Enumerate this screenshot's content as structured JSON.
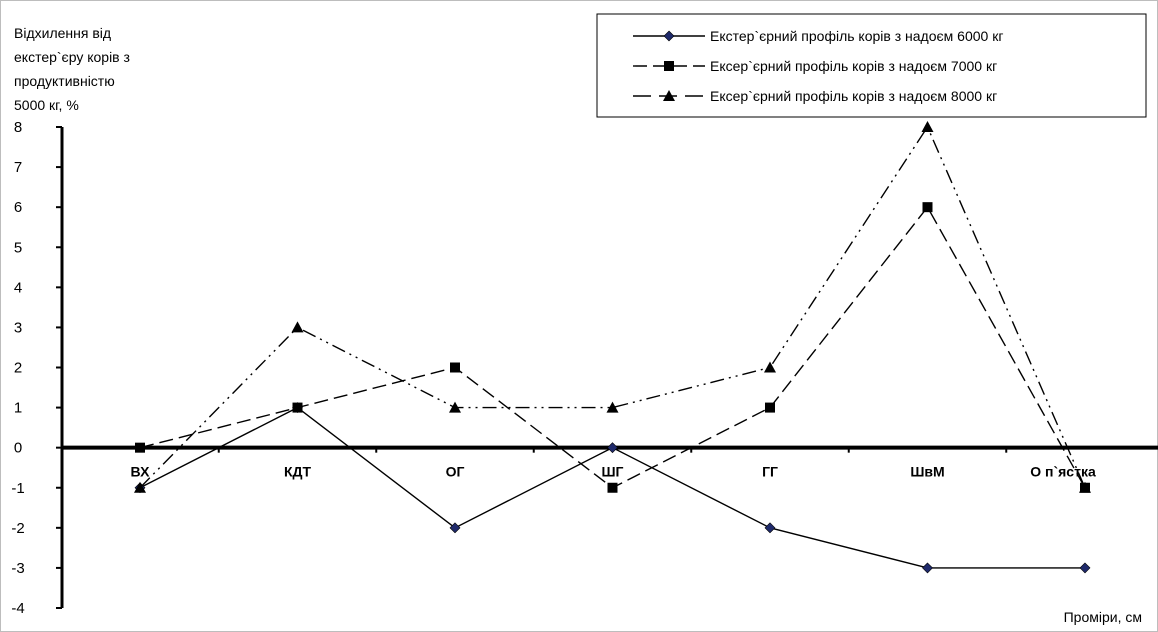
{
  "chart_data": {
    "type": "line",
    "ylabel_lines": [
      "Відхилення від",
      "екстер`єру корів з",
      "продуктивністю",
      "5000 кг, %"
    ],
    "xlabel": "Проміри, см",
    "categories": [
      "ВХ",
      "КДТ",
      "ОГ",
      "ШГ",
      "ГГ",
      "ШвМ",
      "О п`ястка"
    ],
    "ylim": [
      -4,
      8
    ],
    "yticks": [
      "-4",
      "-3",
      "-2",
      "-1",
      "0",
      "1",
      "2",
      "3",
      "4",
      "5",
      "6",
      "7",
      "8"
    ],
    "legend_position": "top-right",
    "series": [
      {
        "name": "Екстер`єрний профіль корів з надоєм 6000 кг",
        "values": [
          -1,
          1,
          -2,
          0,
          -2,
          -3,
          -3
        ],
        "marker": "diamond",
        "dash": "solid",
        "color": "#000000",
        "marker_color": "#1F2A6B"
      },
      {
        "name": "Ексер`єрний профіль корів з надоєм 7000 кг",
        "values": [
          0,
          1,
          2,
          -1,
          1,
          6,
          -1
        ],
        "marker": "square",
        "dash": "dashed",
        "color": "#000000",
        "marker_color": "#000000"
      },
      {
        "name": "Ексер`єрний профіль корів з надоєм 8000 кг",
        "values": [
          -1,
          3,
          1,
          1,
          2,
          8,
          -1
        ],
        "marker": "triangle",
        "dash": "dashdotdot",
        "color": "#000000",
        "marker_color": "#000000"
      }
    ]
  }
}
